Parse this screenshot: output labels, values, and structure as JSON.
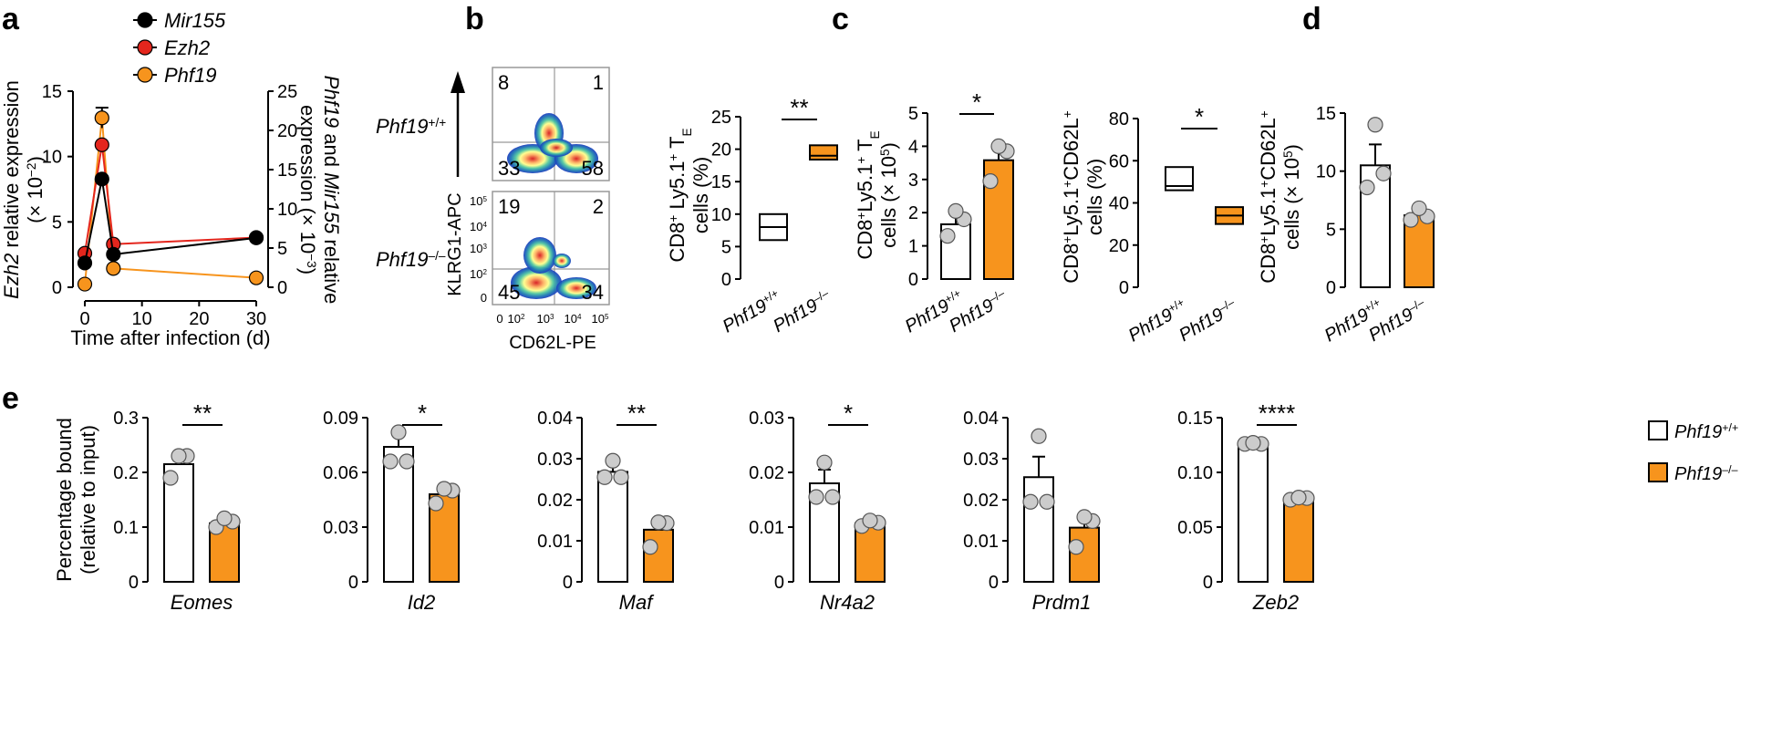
{
  "colors": {
    "mir155": "#000000",
    "ezh2": "#e4261d",
    "phf19": "#f7941d",
    "ko_bar": "#f7941d",
    "wt_bar": "#ffffff",
    "dot": "#cccccc"
  },
  "panels": {
    "a": "a",
    "b": "b",
    "c": "c",
    "d": "d",
    "e": "e"
  },
  "legend": {
    "a": [
      "Mir155",
      "Ezh2",
      "Phf19"
    ],
    "e_wt": "Phf19",
    "e_wt_sup": "+/+",
    "e_ko": "Phf19",
    "e_ko_sup": "–/–"
  },
  "genotypes": {
    "wt": "Phf19",
    "wt_sup": "+/+",
    "ko": "Phf19",
    "ko_sup": "–/–"
  },
  "chart_data": [
    {
      "panel": "a",
      "type": "line",
      "xlabel": "Time after infection (d)",
      "x_ticks": [
        "0",
        "10",
        "20",
        "30"
      ],
      "xlim": [
        0,
        30
      ],
      "ylabel_left_pre": "Ezh2",
      "ylabel_left_post": " relative expression",
      "ylabel_left_line2": "(× 10",
      "ylabel_left_exp": "−2",
      "ylabel_left_close": ")",
      "ylim_left": [
        0,
        15
      ],
      "y_ticks_left": [
        "0",
        "5",
        "10",
        "15"
      ],
      "ylabel_right_1": "Phf19",
      "ylabel_right_2": " and ",
      "ylabel_right_3": "Mir155",
      "ylabel_right_4": " relative",
      "ylabel_right_line2": "expression (× 10",
      "ylabel_right_exp": "−3",
      "ylabel_right_close": ")",
      "ylim_right": [
        0,
        25
      ],
      "y_ticks_right": [
        "0",
        "5",
        "10",
        "15",
        "20",
        "25"
      ],
      "series": [
        {
          "name": "Mir155",
          "axis": "right",
          "x": [
            0,
            3,
            5,
            30
          ],
          "y": [
            3.1,
            13.8,
            4.2,
            6.3
          ],
          "err": [
            0,
            0,
            0,
            0
          ]
        },
        {
          "name": "Ezh2",
          "axis": "left",
          "x": [
            0,
            3,
            5,
            30
          ],
          "y": [
            2.6,
            10.9,
            3.3,
            3.8
          ],
          "err": [
            0,
            0,
            0,
            0
          ]
        },
        {
          "name": "Phf19",
          "axis": "right",
          "x": [
            0,
            3,
            5,
            30
          ],
          "y": [
            0.4,
            21.6,
            2.4,
            1.2
          ],
          "err": [
            0,
            1.3,
            0,
            0
          ]
        }
      ]
    },
    {
      "panel": "b",
      "type": "scatter",
      "xlabel": "CD62L-PE",
      "ylabel": "KLRG1-APC",
      "x_ticks": [
        "0",
        "10",
        "10",
        "10",
        "10"
      ],
      "x_tick_exp": [
        "",
        "2",
        "3",
        "4",
        "5"
      ],
      "y_ticks": [
        "0",
        "10",
        "10",
        "10",
        "10"
      ],
      "y_tick_exp": [
        "",
        "2",
        "3",
        "4",
        "5"
      ],
      "plots": [
        {
          "genotype": "Phf19",
          "sup": "+/+",
          "quadrants": {
            "ul": "8",
            "ur": "1",
            "ll": "33",
            "lr": "58"
          }
        },
        {
          "genotype": "Phf19",
          "sup": "–/–",
          "quadrants": {
            "ul": "19",
            "ur": "2",
            "ll": "45",
            "lr": "34"
          }
        }
      ]
    },
    {
      "panel": "c1",
      "type": "box",
      "ylabel_line1": "CD8",
      "ylabel_sup1": "+",
      "ylabel_mid": " Ly5.1",
      "ylabel_sup2": "+",
      "ylabel_end": " T",
      "ylabel_sub": "E",
      "ylabel_line2": "cells (%)",
      "ylim": [
        0,
        25
      ],
      "y_ticks": [
        "0",
        "5",
        "10",
        "15",
        "20",
        "25"
      ],
      "boxes": [
        {
          "group": "wt",
          "min": 6,
          "median": 8,
          "max": 10
        },
        {
          "group": "ko",
          "min": 18.4,
          "median": 19,
          "max": 20.6
        }
      ],
      "significance": "**"
    },
    {
      "panel": "c2",
      "type": "bar",
      "ylabel_line1": "CD8",
      "ylabel_sup1": "+",
      "ylabel_mid": "Ly5.1",
      "ylabel_sup2": "+",
      "ylabel_end": " T",
      "ylabel_sub": "E",
      "ylabel_line2": "cells (× 10",
      "ylabel_exp": "5",
      "ylabel_close": ")",
      "ylim": [
        0,
        5
      ],
      "y_ticks": [
        "0",
        "1",
        "2",
        "3",
        "4",
        "5"
      ],
      "values": [
        1.65,
        3.58
      ],
      "errors": [
        0.3,
        0.4
      ],
      "points": [
        [
          1.3,
          1.8,
          2.05
        ],
        [
          2.95,
          3.85,
          4.0
        ]
      ],
      "significance": "*"
    },
    {
      "panel": "d1",
      "type": "box",
      "ylabel_line1": "CD8",
      "ylabel_sup1": "+",
      "ylabel_mid": "Ly5.1",
      "ylabel_sup2": "+",
      "ylabel_end": "CD62L",
      "ylabel_sup3": "+",
      "ylabel_line2": "cells (%)",
      "ylim": [
        0,
        80
      ],
      "y_ticks": [
        "0",
        "20",
        "40",
        "60",
        "80"
      ],
      "boxes": [
        {
          "group": "wt",
          "min": 46,
          "median": 48,
          "max": 57
        },
        {
          "group": "ko",
          "min": 30,
          "median": 34,
          "max": 38
        }
      ],
      "significance": "*"
    },
    {
      "panel": "d2",
      "type": "bar",
      "ylabel_line1": "CD8",
      "ylabel_sup1": "+",
      "ylabel_mid": "Ly5.1",
      "ylabel_sup2": "+",
      "ylabel_end": "CD62L",
      "ylabel_sup3": "+",
      "ylabel_line2": "cells (× 10",
      "ylabel_exp": "5",
      "ylabel_close": ")",
      "ylim": [
        0,
        15
      ],
      "y_ticks": [
        "0",
        "5",
        "10",
        "15"
      ],
      "values": [
        10.5,
        6.2
      ],
      "errors": [
        1.8,
        0.4
      ],
      "points": [
        [
          8.6,
          9.8,
          14.0
        ],
        [
          5.8,
          6.1,
          6.8
        ]
      ],
      "significance": ""
    },
    {
      "panel": "e",
      "type": "bar",
      "ylabel_line1": "Percentage bound",
      "ylabel_line2": "(relative to input)",
      "groups": [
        {
          "gene": "Eomes",
          "ylim": [
            0,
            0.3
          ],
          "y_ticks": [
            "0",
            "0.1",
            "0.2",
            "0.3"
          ],
          "values": [
            0.215,
            0.107
          ],
          "errors": [
            0.017,
            0.005
          ],
          "points": [
            [
              0.19,
              0.23,
              0.23
            ],
            [
              0.1,
              0.11,
              0.116
            ]
          ],
          "significance": "**"
        },
        {
          "gene": "Id2",
          "ylim": [
            0,
            0.09
          ],
          "y_ticks": [
            "0",
            "0.03",
            "0.06",
            "0.09"
          ],
          "values": [
            0.074,
            0.048
          ],
          "errors": [
            0.008,
            0.003
          ],
          "points": [
            [
              0.066,
              0.066,
              0.082
            ],
            [
              0.043,
              0.05,
              0.051
            ]
          ],
          "significance": "*"
        },
        {
          "gene": "Maf",
          "ylim": [
            0,
            0.04
          ],
          "y_ticks": [
            "0",
            "0.01",
            "0.02",
            "0.03",
            "0.04"
          ],
          "values": [
            0.0268,
            0.0127
          ],
          "errors": [
            0.0018,
            0.0025
          ],
          "points": [
            [
              0.0255,
              0.0255,
              0.0295
            ],
            [
              0.0085,
              0.0143,
              0.0145
            ]
          ],
          "significance": "**"
        },
        {
          "gene": "Nr4a2",
          "ylim": [
            0,
            0.03
          ],
          "y_ticks": [
            "0",
            "0.01",
            "0.02",
            "0.03"
          ],
          "values": [
            0.018,
            0.0107
          ],
          "errors": [
            0.0025,
            0.0005
          ],
          "points": [
            [
              0.0155,
              0.0155,
              0.0218
            ],
            [
              0.0102,
              0.0108,
              0.0112
            ]
          ],
          "significance": "*"
        },
        {
          "gene": "Prdm1",
          "ylim": [
            0,
            0.04
          ],
          "y_ticks": [
            "0",
            "0.01",
            "0.02",
            "0.03",
            "0.04"
          ],
          "values": [
            0.0255,
            0.0132
          ],
          "errors": [
            0.005,
            0.0025
          ],
          "points": [
            [
              0.0195,
              0.0195,
              0.0355
            ],
            [
              0.0085,
              0.0148,
              0.0158
            ]
          ],
          "significance": ""
        },
        {
          "gene": "Zeb2",
          "ylim": [
            0,
            0.15
          ],
          "y_ticks": [
            "0",
            "0.05",
            "0.10",
            "0.15"
          ],
          "values": [
            0.1265,
            0.0755
          ],
          "errors": [
            0.0012,
            0.0012
          ],
          "points": [
            [
              0.126,
              0.126,
              0.127
            ],
            [
              0.075,
              0.0765,
              0.077
            ]
          ],
          "significance": "****"
        }
      ]
    }
  ]
}
